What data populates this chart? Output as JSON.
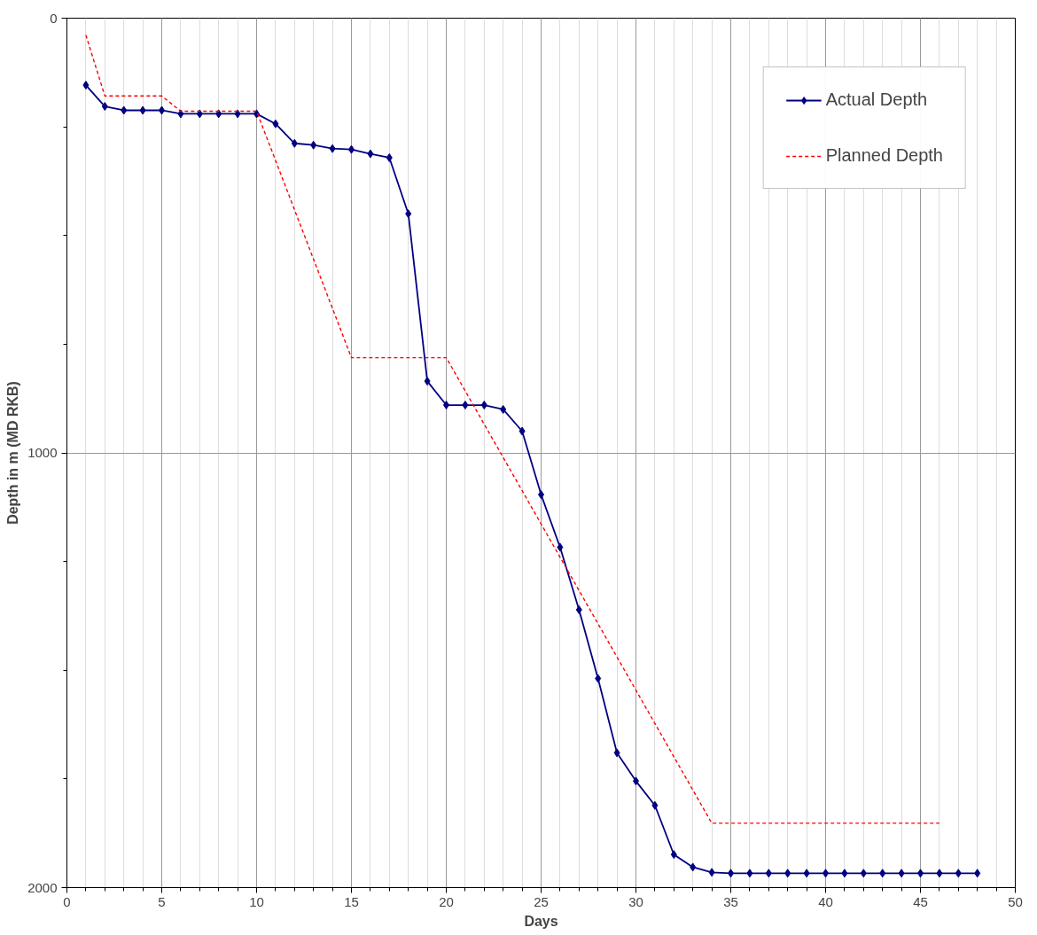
{
  "chart_data": {
    "type": "line",
    "xlabel": "Days",
    "ylabel": "Depth in m (MD RKB)",
    "xlim": [
      0,
      50
    ],
    "xticks": [
      0,
      5,
      10,
      15,
      20,
      25,
      30,
      35,
      40,
      45,
      50
    ],
    "ylim": [
      2000,
      0
    ],
    "yticks": [
      0,
      1000,
      2000
    ],
    "grid": true,
    "legend": "top right",
    "series": [
      {
        "name": "Actual Depth",
        "color": "#000080",
        "marker": "diamond",
        "line_style": "solid",
        "x": [
          1,
          2,
          3,
          4,
          5,
          6,
          7,
          8,
          9,
          10,
          11,
          12,
          13,
          14,
          15,
          16,
          17,
          18,
          19,
          20,
          21,
          22,
          23,
          24,
          25,
          26,
          27,
          28,
          29,
          30,
          31,
          32,
          33,
          34,
          35,
          36,
          37,
          38,
          39,
          40,
          41,
          42,
          43,
          44,
          45,
          46,
          47,
          48
        ],
        "values": [
          154,
          203,
          212,
          212,
          212,
          220,
          220,
          220,
          220,
          220,
          243,
          288,
          292,
          300,
          302,
          312,
          321,
          450,
          835,
          890,
          890,
          890,
          900,
          950,
          1096,
          1217,
          1361,
          1519,
          1690,
          1755,
          1811,
          1924,
          1953,
          1965,
          1967,
          1967,
          1967,
          1967,
          1967,
          1967,
          1967,
          1967,
          1967,
          1967,
          1967,
          1967,
          1967,
          1967
        ]
      },
      {
        "name": "Planned Depth",
        "color": "#ff0000",
        "marker": "none",
        "line_style": "dashed",
        "x": [
          1,
          2,
          5,
          6,
          10,
          15,
          20,
          34,
          46
        ],
        "values": [
          39,
          179,
          179,
          214,
          214,
          781,
          781,
          1852,
          1852
        ]
      }
    ]
  }
}
